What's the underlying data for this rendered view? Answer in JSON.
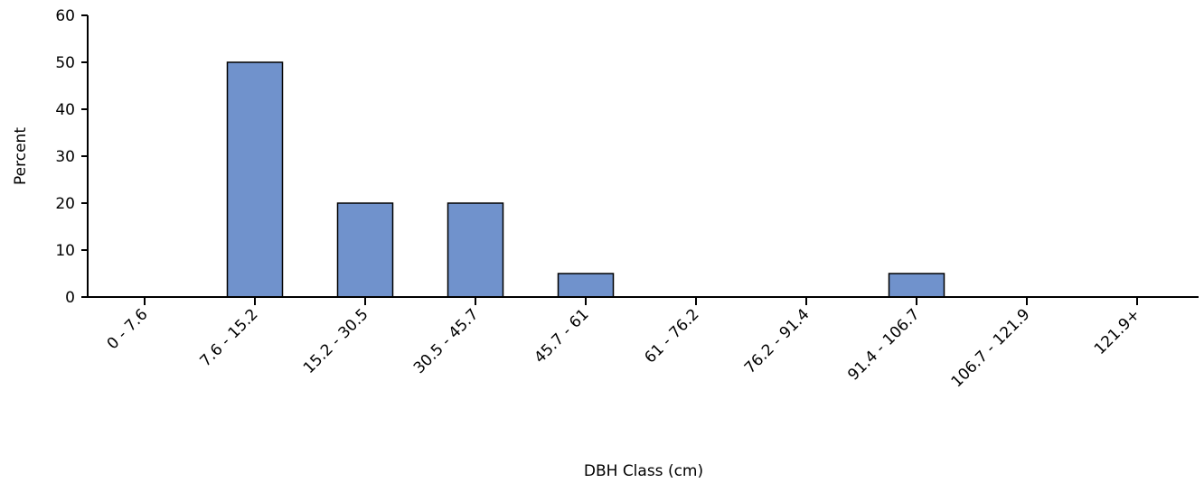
{
  "chart_data": {
    "type": "bar",
    "categories": [
      "0 - 7.6",
      "7.6 - 15.2",
      "15.2 - 30.5",
      "30.5 - 45.7",
      "45.7 - 61",
      "61 - 76.2",
      "76.2 - 91.4",
      "91.4 - 106.7",
      "106.7 - 121.9",
      "121.9+"
    ],
    "values": [
      0,
      50,
      20,
      20,
      5,
      0,
      0,
      5,
      0,
      0
    ],
    "title": "",
    "xlabel": "DBH Class (cm)",
    "ylabel": "Percent",
    "ylim": [
      0,
      60
    ],
    "yticks": [
      0,
      10,
      20,
      30,
      40,
      50,
      60
    ],
    "grid": false,
    "legend": "none",
    "colors": {
      "bar_fill": "#7092cc",
      "bar_stroke": "#000000",
      "axis": "#000000"
    }
  }
}
